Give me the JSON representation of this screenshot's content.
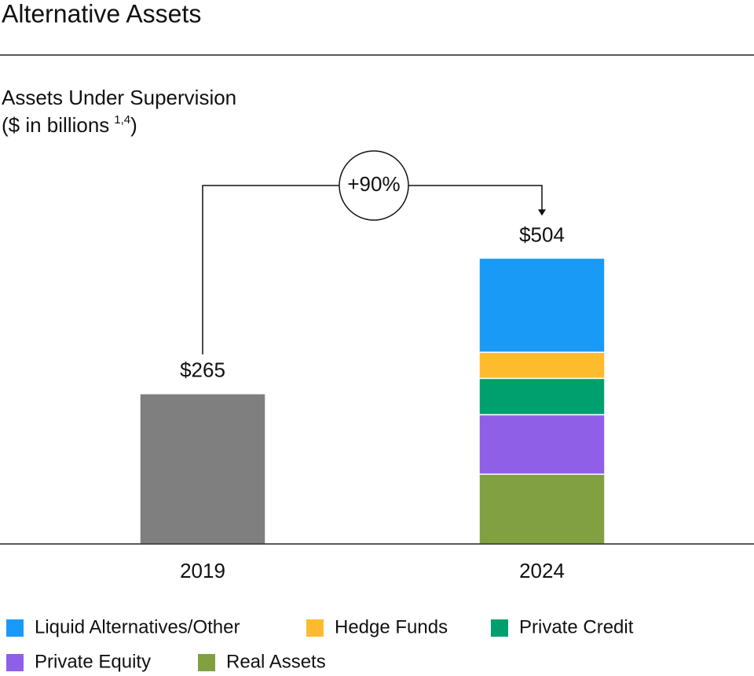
{
  "chart_data": {
    "type": "stacked_bar",
    "title": "Alternative Assets",
    "subtitle": "Assets Under Supervision",
    "unit_label": {
      "text": "($ in billions",
      "footnote": "1,4",
      "close": ")"
    },
    "annotation": "+90%",
    "categories": [
      "2019",
      "2024"
    ],
    "ylim": [
      0,
      560
    ],
    "series": [
      {
        "color": "#7f7f7f",
        "values": [
          265,
          null
        ]
      },
      {
        "name": "Liquid Alternatives/Other",
        "color": "#1a9af7",
        "values": [
          null,
          166
        ]
      },
      {
        "name": "Hedge Funds",
        "color": "#fdbb2d",
        "values": [
          null,
          46
        ]
      },
      {
        "name": "Private Credit",
        "color": "#00a06e",
        "values": [
          null,
          64
        ]
      },
      {
        "name": "Private Equity",
        "color": "#8f5fe8",
        "values": [
          null,
          105
        ]
      },
      {
        "name": "Real Assets",
        "color": "#80a042",
        "values": [
          null,
          123
        ]
      }
    ],
    "totals": [
      265,
      504
    ],
    "total_labels": [
      "$265",
      "$504"
    ]
  }
}
